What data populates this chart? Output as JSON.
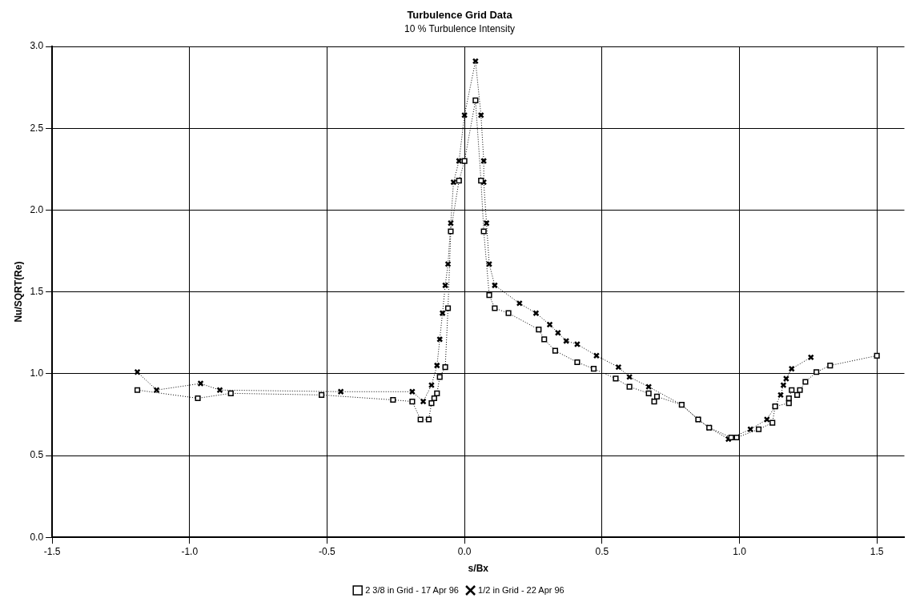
{
  "chart_data": {
    "type": "line",
    "title": "Turbulence Grid Data",
    "subtitle": "10 % Turbulence Intensity",
    "xlabel": "s/Bx",
    "ylabel": "Nu/SQRT(Re)",
    "xlim": [
      -1.5,
      1.6
    ],
    "xticks": [
      {
        "value": -1.5,
        "label": "-1.5"
      },
      {
        "value": -1,
        "label": "-1.0"
      },
      {
        "value": -0.5,
        "label": "-0.5"
      },
      {
        "value": 0,
        "label": "0.0"
      },
      {
        "value": 0.5,
        "label": "0.5"
      },
      {
        "value": 1,
        "label": "1.0"
      },
      {
        "value": 1.5,
        "label": "1.5"
      }
    ],
    "ylim": [
      0,
      3
    ],
    "yticks": [
      {
        "value": 0,
        "label": "0.0"
      },
      {
        "value": 0.5,
        "label": "0.5"
      },
      {
        "value": 1,
        "label": "1.0"
      },
      {
        "value": 1.5,
        "label": "1.5"
      },
      {
        "value": 2,
        "label": "2.0"
      },
      {
        "value": 2.5,
        "label": "2.5"
      },
      {
        "value": 3,
        "label": "3.0"
      }
    ],
    "grid": true,
    "legend": "bottom",
    "line_style": "dotted",
    "series": [
      {
        "name": "2 3/8 in Grid - 17 Apr 96",
        "color": "#000000",
        "marker": "square",
        "x": [
          -1.19,
          -0.97,
          -0.85,
          -0.52,
          -0.26,
          -0.19,
          -0.16,
          -0.13,
          -0.12,
          -0.11,
          -0.1,
          -0.09,
          -0.07,
          -0.06,
          -0.05,
          -0.02,
          0,
          0.04,
          0.06,
          0.07,
          0.09,
          0.11,
          0.16,
          0.27,
          0.29,
          0.33,
          0.41,
          0.47,
          0.55,
          0.6,
          0.67,
          0.69,
          0.7,
          0.79,
          0.85,
          0.89,
          0.97,
          0.99,
          1.07,
          1.12,
          1.13,
          1.18,
          1.18,
          1.19,
          1.21,
          1.22,
          1.24,
          1.28,
          1.33,
          1.5
        ],
        "values": [
          0.9,
          0.85,
          0.88,
          0.87,
          0.84,
          0.83,
          0.72,
          0.72,
          0.82,
          0.85,
          0.88,
          0.98,
          1.04,
          1.4,
          1.87,
          2.18,
          2.3,
          2.67,
          2.18,
          1.87,
          1.48,
          1.4,
          1.37,
          1.27,
          1.21,
          1.14,
          1.07,
          1.03,
          0.97,
          0.92,
          0.88,
          0.83,
          0.86,
          0.81,
          0.72,
          0.67,
          0.61,
          0.61,
          0.66,
          0.7,
          0.8,
          0.82,
          0.85,
          0.9,
          0.87,
          0.9,
          0.95,
          1.01,
          1.05,
          1.11
        ]
      },
      {
        "name": "1/2 in Grid - 22 Apr 96",
        "color": "#000000",
        "marker": "cross",
        "x": [
          -1.19,
          -1.12,
          -0.96,
          -0.89,
          -0.45,
          -0.19,
          -0.15,
          -0.12,
          -0.11,
          -0.1,
          -0.09,
          -0.08,
          -0.07,
          -0.06,
          -0.05,
          -0.04,
          -0.02,
          0,
          0.04,
          0.06,
          0.07,
          0.07,
          0.08,
          0.09,
          0.11,
          0.2,
          0.26,
          0.31,
          0.34,
          0.37,
          0.41,
          0.48,
          0.56,
          0.6,
          0.67,
          0.7,
          0.79,
          0.85,
          0.89,
          0.96,
          1.04,
          1.1,
          1.13,
          1.15,
          1.16,
          1.17,
          1.19,
          1.26
        ],
        "values": [
          1.01,
          0.9,
          0.94,
          0.9,
          0.89,
          0.89,
          0.83,
          0.93,
          null,
          1.05,
          1.21,
          1.37,
          1.54,
          1.67,
          1.92,
          2.17,
          2.3,
          2.58,
          2.91,
          2.58,
          2.3,
          2.17,
          1.92,
          1.67,
          1.54,
          1.43,
          1.37,
          1.3,
          1.25,
          1.2,
          1.18,
          1.11,
          1.04,
          0.98,
          0.92,
          null,
          0.81,
          0.72,
          0.67,
          0.6,
          0.66,
          0.72,
          0.8,
          0.87,
          0.93,
          0.97,
          1.03,
          1.1
        ]
      }
    ]
  }
}
